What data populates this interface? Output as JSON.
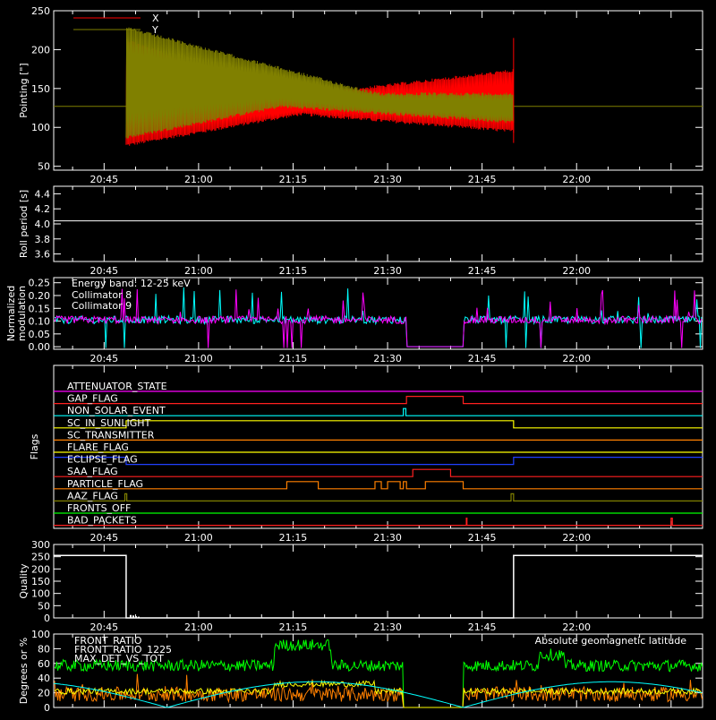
{
  "chart_data": [
    {
      "type": "line",
      "ylabel": "Pointing [\"]",
      "ylim": [
        45,
        250
      ],
      "yticks": [
        50,
        100,
        150,
        200,
        250
      ],
      "x_time_ticks": [
        "20:45",
        "21:00",
        "21:15",
        "21:30",
        "21:45",
        "22:00"
      ],
      "legend_placement": "top-left",
      "series": [
        {
          "name": "X",
          "color": "#ff0000",
          "description_points": [
            {
              "x": "20:48",
              "y": [
                75,
                220
              ]
            },
            {
              "x": "21:05",
              "y": [
                100,
                165
              ]
            },
            {
              "x": "21:20",
              "y": [
                115,
                140
              ]
            },
            {
              "x": "21:35",
              "y": [
                100,
                168
              ]
            },
            {
              "x": "21:50",
              "y": [
                90,
                175
              ]
            }
          ]
        },
        {
          "name": "Y",
          "color": "#808000",
          "description_points": [
            {
              "x": "20:48",
              "y": [
                85,
                230
              ]
            },
            {
              "x": "21:05",
              "y": [
                120,
                215
              ]
            },
            {
              "x": "21:20",
              "y": [
                125,
                170
              ]
            },
            {
              "x": "21:35",
              "y": [
                118,
                145
              ]
            },
            {
              "x": "21:50",
              "y": [
                105,
                145
              ]
            }
          ]
        }
      ],
      "baseline": 127
    },
    {
      "type": "line",
      "ylabel": "Roll period [s]",
      "ylim": [
        3.5,
        4.5
      ],
      "yticks": [
        "3.6",
        "3.8",
        "4.0",
        "4.2",
        "4.4"
      ],
      "x_time_ticks": [
        "20:45",
        "21:00",
        "21:15",
        "21:30",
        "21:45",
        "22:00"
      ],
      "series": [
        {
          "name": "",
          "color": "#ffffff",
          "values": [
            4.04,
            4.04
          ]
        }
      ]
    },
    {
      "type": "line",
      "ylabel_line1": "Normalized",
      "ylabel_line2": "modulation",
      "ylim": [
        -0.01,
        0.27
      ],
      "yticks": [
        "0.00",
        "0.05",
        "0.10",
        "0.15",
        "0.20",
        "0.25"
      ],
      "x_time_ticks": [
        "20:45",
        "21:00",
        "21:15",
        "21:30",
        "21:45",
        "22:00"
      ],
      "annotation": "Energy band: 12-25 keV",
      "series": [
        {
          "name": "Collimator 8",
          "color": "#00ffff",
          "baseline": 0.1
        },
        {
          "name": "Collimator 9",
          "color": "#ff00ff",
          "baseline": 0.1
        }
      ]
    },
    {
      "type": "line",
      "ylabel": "Flags",
      "x_time_ticks": [
        "20:45",
        "21:00",
        "21:15",
        "21:30",
        "21:45",
        "22:00"
      ],
      "flags": [
        {
          "name": "ATTENUATOR_STATE",
          "color": "#ff00ff"
        },
        {
          "name": "GAP_FLAG",
          "color": "#ff2020"
        },
        {
          "name": "NON_SOLAR_EVENT",
          "color": "#00ffff"
        },
        {
          "name": "SC_IN_SUNLIGHT",
          "color": "#ffff00"
        },
        {
          "name": "SC_TRANSMITTER",
          "color": "#ff8000"
        },
        {
          "name": "FLARE_FLAG",
          "color": "#ffff00"
        },
        {
          "name": "ECLIPSE_FLAG",
          "color": "#2040ff"
        },
        {
          "name": "SAA_FLAG",
          "color": "#ff2020"
        },
        {
          "name": "PARTICLE_FLAG",
          "color": "#ff8000"
        },
        {
          "name": "AAZ_FLAG",
          "color": "#808000"
        },
        {
          "name": "FRONTS_OFF",
          "color": "#00ff00"
        },
        {
          "name": "BAD_PACKETS",
          "color": "#ff2020"
        }
      ]
    },
    {
      "type": "line",
      "ylabel": "Quality",
      "ylim": [
        0,
        300
      ],
      "yticks": [
        0,
        50,
        100,
        150,
        200,
        250,
        300
      ],
      "x_time_ticks": [
        "20:45",
        "21:00",
        "21:15",
        "21:30",
        "21:45",
        "22:00"
      ],
      "series": [
        {
          "name": "",
          "color": "#ffffff",
          "values_desc": [
            {
              "x": "20:37-20:49",
              "y": 255
            },
            {
              "x": "20:49-21:50",
              "y": 0
            },
            {
              "x": "21:50-22:20",
              "y": 255
            }
          ]
        }
      ]
    },
    {
      "type": "line",
      "ylabel": "Degrees or %",
      "ylim": [
        0,
        100
      ],
      "yticks": [
        0,
        20,
        40,
        60,
        80,
        100
      ],
      "series": [
        {
          "name": "FRONT_RATIO",
          "color": "#ffff00"
        },
        {
          "name": "FRONT_RATIO_1225",
          "color": "#00ff00"
        },
        {
          "name": "MAX_DET_VS_TOT",
          "color": "#ff8000"
        },
        {
          "name": "Absolute geomagnetic latitude",
          "color": "#00ffff"
        }
      ]
    }
  ]
}
